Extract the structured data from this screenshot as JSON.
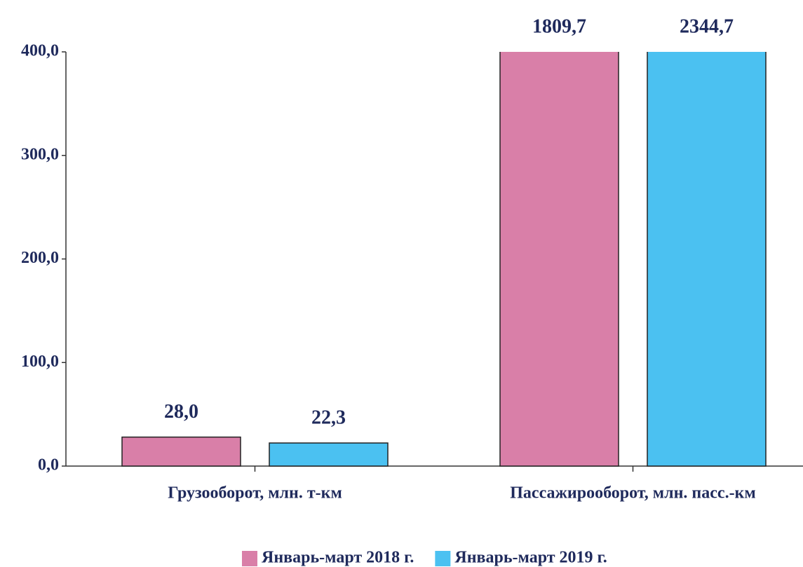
{
  "chart_data": {
    "type": "bar",
    "categories": [
      "Грузооборот, млн. т-км",
      "Пассажирооборот, млн. пасс.-км"
    ],
    "series": [
      {
        "name": "Январь-март 2018 г.",
        "color": "#d97fa8",
        "values": [
          28.0,
          1809.7
        ],
        "value_labels": [
          "28,0",
          "1809,7"
        ]
      },
      {
        "name": "Январь-март 2019 г.",
        "color": "#4bc1f1",
        "values": [
          22.3,
          2344.7
        ],
        "value_labels": [
          "22,3",
          "2344,7"
        ]
      }
    ],
    "ylim": [
      0,
      400
    ],
    "yticks": [
      {
        "value": 0,
        "label": "0,0"
      },
      {
        "value": 100,
        "label": "100,0"
      },
      {
        "value": 200,
        "label": "200,0"
      },
      {
        "value": 300,
        "label": "300,0"
      },
      {
        "value": 400,
        "label": "400,0"
      }
    ],
    "legend": "bottom"
  }
}
